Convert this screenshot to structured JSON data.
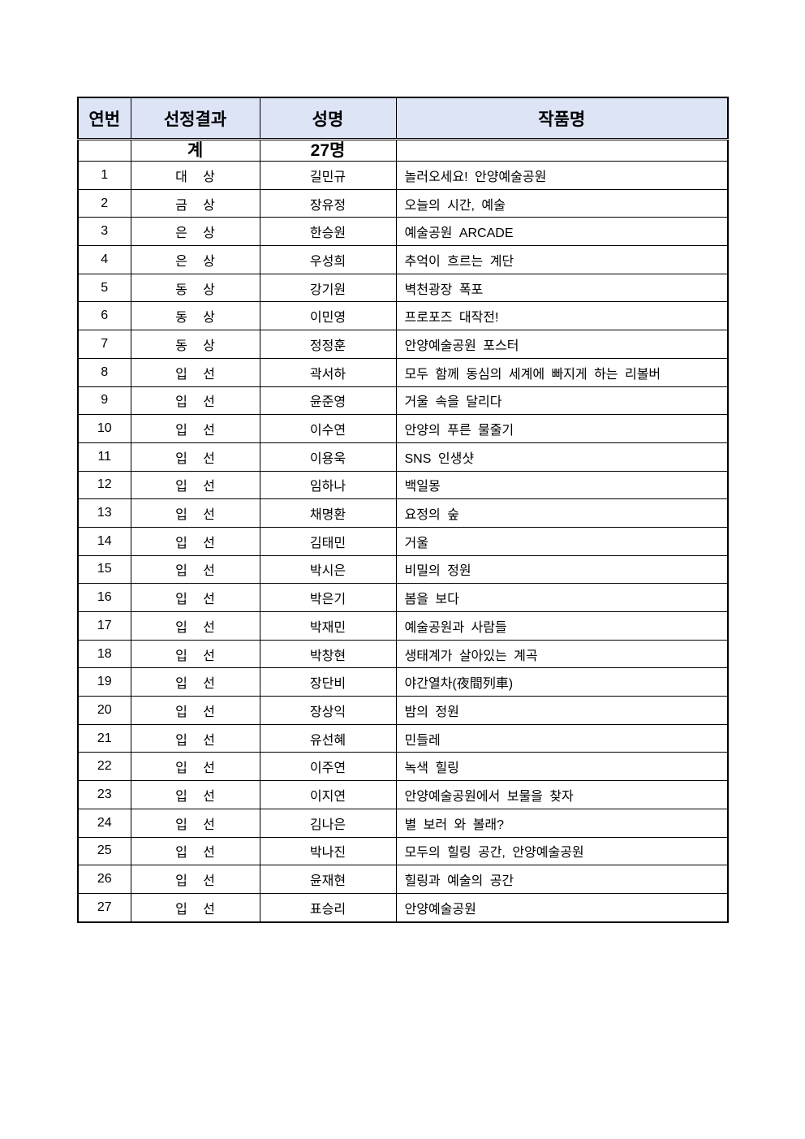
{
  "table": {
    "headers": [
      "연번",
      "선정결과",
      "성명",
      "작품명"
    ],
    "total": {
      "label": "계",
      "count": "27명"
    },
    "rows": [
      {
        "no": "1",
        "result": "대 상",
        "name": "길민규",
        "title": "놀러오세요! 안양예술공원"
      },
      {
        "no": "2",
        "result": "금 상",
        "name": "장유정",
        "title": "오늘의 시간, 예술"
      },
      {
        "no": "3",
        "result": "은 상",
        "name": "한승원",
        "title": "예술공원 ARCADE"
      },
      {
        "no": "4",
        "result": "은 상",
        "name": "우성희",
        "title": "추억이 흐르는 계단"
      },
      {
        "no": "5",
        "result": "동 상",
        "name": "강기원",
        "title": "벽천광장 폭포"
      },
      {
        "no": "6",
        "result": "동 상",
        "name": "이민영",
        "title": "프로포즈 대작전!"
      },
      {
        "no": "7",
        "result": "동 상",
        "name": "정정훈",
        "title": "안양예술공원 포스터"
      },
      {
        "no": "8",
        "result": "입 선",
        "name": "곽서하",
        "title": "모두 함께 동심의 세계에 빠지게 하는 리볼버"
      },
      {
        "no": "9",
        "result": "입 선",
        "name": "윤준영",
        "title": "거울 속을 달리다"
      },
      {
        "no": "10",
        "result": "입 선",
        "name": "이수연",
        "title": "안양의 푸른 물줄기"
      },
      {
        "no": "11",
        "result": "입 선",
        "name": "이용욱",
        "title": "SNS 인생샷"
      },
      {
        "no": "12",
        "result": "입 선",
        "name": "임하나",
        "title": "백일몽"
      },
      {
        "no": "13",
        "result": "입 선",
        "name": "채명환",
        "title": "요정의 숲"
      },
      {
        "no": "14",
        "result": "입 선",
        "name": "김태민",
        "title": "거울"
      },
      {
        "no": "15",
        "result": "입 선",
        "name": "박시은",
        "title": "비밀의 정원"
      },
      {
        "no": "16",
        "result": "입 선",
        "name": "박은기",
        "title": "봄을 보다"
      },
      {
        "no": "17",
        "result": "입 선",
        "name": "박재민",
        "title": "예술공원과 사람들"
      },
      {
        "no": "18",
        "result": "입 선",
        "name": "박창현",
        "title": "생태계가 살아있는 계곡"
      },
      {
        "no": "19",
        "result": "입 선",
        "name": "장단비",
        "title": "야간열차(夜間列車)"
      },
      {
        "no": "20",
        "result": "입 선",
        "name": "장상익",
        "title": "밤의 정원"
      },
      {
        "no": "21",
        "result": "입 선",
        "name": "유선혜",
        "title": "민들레"
      },
      {
        "no": "22",
        "result": "입 선",
        "name": "이주연",
        "title": "녹색 힐링"
      },
      {
        "no": "23",
        "result": "입 선",
        "name": "이지연",
        "title": "안양예술공원에서 보물을 찾자"
      },
      {
        "no": "24",
        "result": "입 선",
        "name": "김나은",
        "title": "별 보러 와 볼래?"
      },
      {
        "no": "25",
        "result": "입 선",
        "name": "박나진",
        "title": "모두의 힐링 공간, 안양예술공원"
      },
      {
        "no": "26",
        "result": "입 선",
        "name": "윤재현",
        "title": "힐링과 예술의 공간"
      },
      {
        "no": "27",
        "result": "입 선",
        "name": "표승리",
        "title": "안양예술공원"
      }
    ]
  },
  "colors": {
    "header_bg": "#dde4f6"
  }
}
